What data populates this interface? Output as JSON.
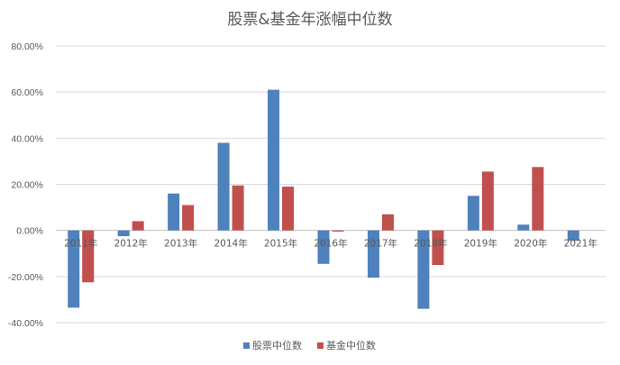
{
  "chart_data": {
    "type": "bar",
    "title": "股票&基金年涨幅中位数",
    "categories": [
      "2011年",
      "2012年",
      "2013年",
      "2014年",
      "2015年",
      "2016年",
      "2017年",
      "2018年",
      "2019年",
      "2020年",
      "2021年"
    ],
    "series": [
      {
        "name": "股票中位数",
        "color": "#4f81bd",
        "values": [
          -0.335,
          -0.025,
          0.16,
          0.38,
          0.61,
          -0.145,
          -0.205,
          -0.34,
          0.15,
          0.025,
          -0.045
        ]
      },
      {
        "name": "基金中位数",
        "color": "#c0504d",
        "values": [
          -0.225,
          0.04,
          0.11,
          0.195,
          0.19,
          -0.005,
          0.07,
          -0.15,
          0.255,
          0.275,
          null
        ]
      }
    ],
    "yticks": [
      "80.00%",
      "60.00%",
      "40.00%",
      "20.00%",
      "0.00%",
      "-20.00%",
      "-40.00%"
    ],
    "ylim": [
      -0.4,
      0.8
    ],
    "grid": true,
    "legend_position": "bottom"
  }
}
